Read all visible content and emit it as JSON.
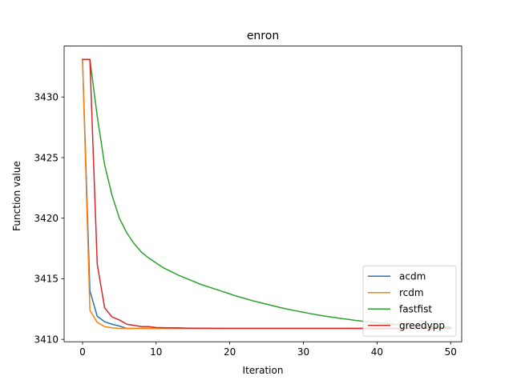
{
  "chart_data": {
    "type": "line",
    "title": "enron",
    "xlabel": "Iteration",
    "ylabel": "Function value",
    "xlim": [
      -2.5,
      51.5
    ],
    "ylim": [
      3409.8,
      3434.2
    ],
    "xticks": [
      0,
      10,
      20,
      30,
      40,
      50
    ],
    "yticks": [
      3410,
      3415,
      3420,
      3425,
      3430
    ],
    "grid": false,
    "legend_position": "lower-right",
    "x": [
      0,
      1,
      2,
      3,
      4,
      5,
      6,
      7,
      8,
      9,
      10,
      11,
      12,
      13,
      14,
      15,
      16,
      17,
      18,
      19,
      20,
      21,
      22,
      23,
      24,
      25,
      26,
      27,
      28,
      29,
      30,
      31,
      32,
      33,
      34,
      35,
      36,
      37,
      38,
      39,
      40,
      41,
      42,
      43,
      44,
      45,
      46,
      47,
      48,
      49,
      50
    ],
    "series": [
      {
        "name": "acdm",
        "color": "#1f77b4",
        "values": [
          3433.1,
          3414.0,
          3411.9,
          3411.45,
          3411.25,
          3411.1,
          3410.9,
          3410.9,
          3410.9,
          3410.9,
          3410.9,
          3410.9,
          3410.9,
          3410.9,
          3410.9,
          3410.9,
          3410.9,
          3410.9,
          3410.9,
          3410.9,
          3410.9,
          3410.9,
          3410.9,
          3410.9,
          3410.9,
          3410.9,
          3410.9,
          3410.9,
          3410.9,
          3410.9,
          3410.9,
          3410.9,
          3410.9,
          3410.9,
          3410.9,
          3410.9,
          3410.9,
          3410.9,
          3410.9,
          3410.9,
          3410.9,
          3410.9,
          3410.9,
          3410.9,
          3410.9,
          3410.9,
          3410.9,
          3410.9,
          3410.9,
          3410.9,
          3410.9
        ]
      },
      {
        "name": "rcdm",
        "color": "#ff7f0e",
        "values": [
          3433.1,
          3412.4,
          3411.4,
          3411.05,
          3410.95,
          3410.9,
          3410.9,
          3410.9,
          3410.9,
          3410.9,
          3410.9,
          3410.9,
          3410.9,
          3410.9,
          3410.9,
          3410.9,
          3410.9,
          3410.9,
          3410.9,
          3410.9,
          3410.9,
          3410.9,
          3410.9,
          3410.9,
          3410.9,
          3410.9,
          3410.9,
          3410.9,
          3410.9,
          3410.9,
          3410.9,
          3410.9,
          3410.9,
          3410.9,
          3410.9,
          3410.9,
          3410.9,
          3410.9,
          3410.9,
          3410.9,
          3410.9,
          3410.9,
          3410.9,
          3410.9,
          3410.9,
          3410.9,
          3410.9,
          3410.9,
          3410.9,
          3410.9,
          3410.9
        ]
      },
      {
        "name": "fastfist",
        "color": "#2ca02c",
        "values": [
          3433.1,
          3433.1,
          3428.4,
          3424.4,
          3421.9,
          3420.0,
          3418.8,
          3417.9,
          3417.2,
          3416.7,
          3416.3,
          3415.9,
          3415.6,
          3415.3,
          3415.05,
          3414.8,
          3414.55,
          3414.35,
          3414.15,
          3413.95,
          3413.75,
          3413.55,
          3413.38,
          3413.2,
          3413.05,
          3412.9,
          3412.75,
          3412.6,
          3412.47,
          3412.35,
          3412.23,
          3412.12,
          3412.01,
          3411.91,
          3411.82,
          3411.73,
          3411.65,
          3411.57,
          3411.5,
          3411.43,
          3411.37,
          3411.31,
          3411.26,
          3411.21,
          3411.17,
          3411.13,
          3411.1,
          3411.07,
          3411.04,
          3411.02,
          3411.0
        ]
      },
      {
        "name": "greedypp",
        "color": "#d62728",
        "values": [
          3433.1,
          3433.1,
          3416.2,
          3412.6,
          3411.85,
          3411.6,
          3411.25,
          3411.15,
          3411.05,
          3411.05,
          3410.98,
          3410.96,
          3410.95,
          3410.95,
          3410.93,
          3410.92,
          3410.92,
          3410.91,
          3410.91,
          3410.9,
          3410.9,
          3410.9,
          3410.9,
          3410.9,
          3410.9,
          3410.9,
          3410.9,
          3410.9,
          3410.9,
          3410.9,
          3410.9,
          3410.9,
          3410.9,
          3410.9,
          3410.9,
          3410.9,
          3410.9,
          3410.9,
          3410.9,
          3410.9,
          3410.9,
          3410.9,
          3410.9,
          3410.9,
          3410.9,
          3410.9,
          3410.9,
          3410.9,
          3410.9,
          3410.9,
          3410.9
        ]
      }
    ]
  }
}
